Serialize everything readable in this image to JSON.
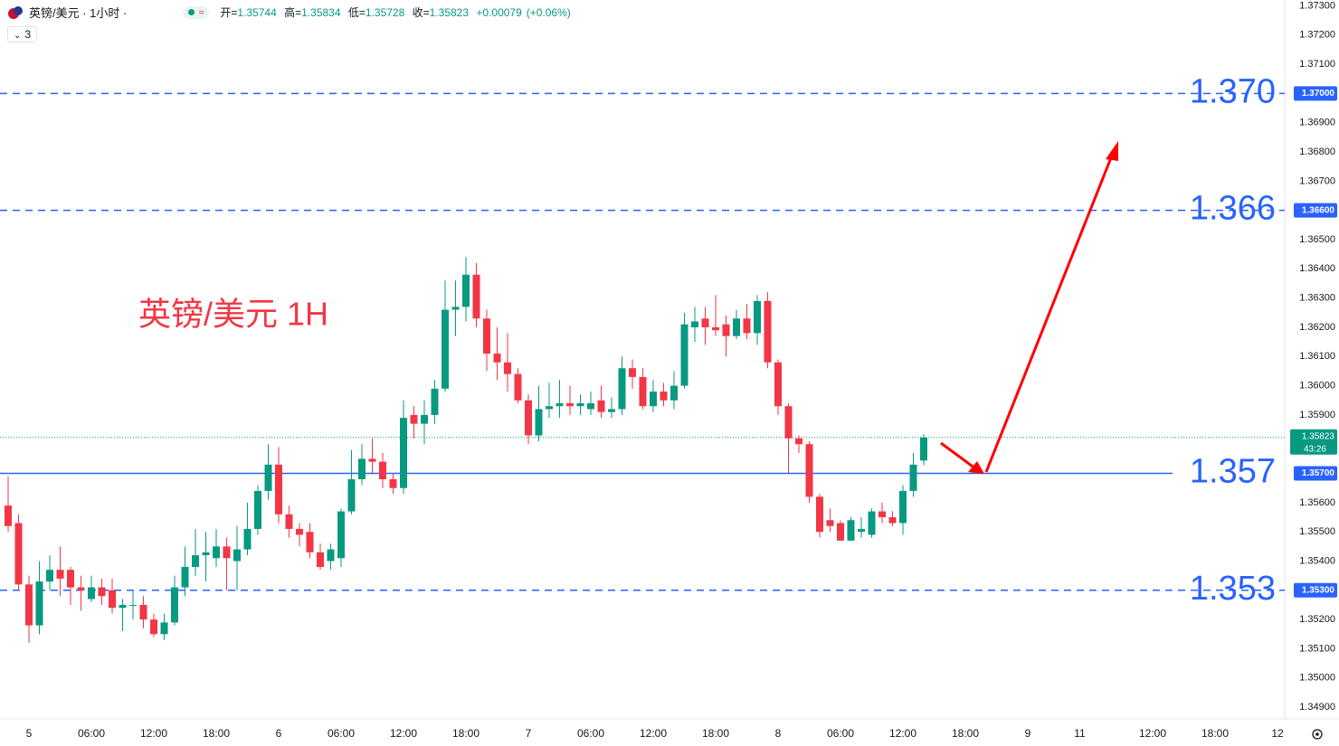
{
  "header": {
    "symbol": "英镑/美元 · 1小时 ·",
    "indicator_count": "3",
    "open_label": "开=",
    "high_label": "高=",
    "low_label": "低=",
    "close_label": "收=",
    "change": "+0.00079",
    "change_pct": "(+0.06%)"
  },
  "chart_data": {
    "type": "candlestick",
    "annotation": "英镑/美元 1H",
    "up_color": "#089981",
    "down_color": "#f23645",
    "level_color": "#2962ff",
    "countdown": "43:26",
    "grid": false,
    "ylim": [
      1.3486,
      1.3732
    ],
    "yticks": [
      {
        "value": 1.349,
        "label": "1.34900"
      },
      {
        "value": 1.35,
        "label": "1.35000"
      },
      {
        "value": 1.351,
        "label": "1.35100"
      },
      {
        "value": 1.352,
        "label": "1.35200"
      },
      {
        "value": 1.353,
        "label": "1.35300"
      },
      {
        "value": 1.354,
        "label": "1.35400"
      },
      {
        "value": 1.355,
        "label": "1.35500"
      },
      {
        "value": 1.356,
        "label": "1.35600"
      },
      {
        "value": 1.357,
        "label": "1.35700"
      },
      {
        "value": 1.358,
        "label": "1.35800"
      },
      {
        "value": 1.359,
        "label": "1.35900"
      },
      {
        "value": 1.36,
        "label": "1.36000"
      },
      {
        "value": 1.361,
        "label": "1.36100"
      },
      {
        "value": 1.362,
        "label": "1.36200"
      },
      {
        "value": 1.363,
        "label": "1.36300"
      },
      {
        "value": 1.364,
        "label": "1.36400"
      },
      {
        "value": 1.365,
        "label": "1.36500"
      },
      {
        "value": 1.366,
        "label": "1.36600"
      },
      {
        "value": 1.367,
        "label": "1.36700"
      },
      {
        "value": 1.368,
        "label": "1.36800"
      },
      {
        "value": 1.369,
        "label": "1.36900"
      },
      {
        "value": 1.37,
        "label": "1.37000"
      },
      {
        "value": 1.371,
        "label": "1.37100"
      },
      {
        "value": 1.372,
        "label": "1.37200"
      },
      {
        "value": 1.373,
        "label": "1.37300"
      }
    ],
    "levels": [
      {
        "value": 1.37,
        "label": "1.370",
        "axis_label": "1.37000",
        "style": "dashed"
      },
      {
        "value": 1.366,
        "label": "1.366",
        "axis_label": "1.36600",
        "style": "dashed"
      },
      {
        "value": 1.357,
        "label": "1.357",
        "axis_label": "1.35700",
        "style": "solid"
      },
      {
        "value": 1.353,
        "label": "1.353",
        "axis_label": "1.35300",
        "style": "dashed"
      }
    ],
    "categories": [
      null,
      null,
      "5",
      null,
      null,
      null,
      null,
      null,
      "06:00",
      null,
      null,
      null,
      null,
      null,
      "12:00",
      null,
      null,
      null,
      null,
      null,
      "18:00",
      null,
      null,
      null,
      null,
      null,
      "6",
      null,
      null,
      null,
      null,
      null,
      "06:00",
      null,
      null,
      null,
      null,
      null,
      "12:00",
      null,
      null,
      null,
      null,
      null,
      "18:00",
      null,
      null,
      null,
      null,
      null,
      "7",
      null,
      null,
      null,
      null,
      null,
      "06:00",
      null,
      null,
      null,
      null,
      null,
      "12:00",
      null,
      null,
      null,
      null,
      null,
      "18:00",
      null,
      null,
      null,
      null,
      null,
      "8",
      null,
      null,
      null,
      null,
      null,
      "06:00",
      null,
      null,
      null,
      null,
      null,
      "12:00",
      null,
      null,
      null,
      null,
      null,
      "18:00",
      null,
      null,
      null,
      null,
      null,
      "9",
      null,
      null,
      null,
      null,
      "11",
      null,
      null,
      null,
      null,
      null,
      null,
      "12:00",
      null,
      null,
      null,
      null,
      null,
      "18:00",
      null,
      null,
      null,
      null,
      null,
      "12"
    ],
    "open": [
      1.3559,
      1.3553,
      1.3532,
      1.3518,
      1.3533,
      1.3537,
      1.3537,
      1.3531,
      1.3527,
      1.3531,
      1.353,
      1.3524,
      1.3525,
      1.3525,
      1.352,
      1.3515,
      1.3519,
      1.3531,
      1.3538,
      1.3542,
      1.3541,
      1.3545,
      1.354,
      1.3544,
      1.3551,
      1.3564,
      1.3573,
      1.3556,
      1.3551,
      1.355,
      1.3543,
      1.354,
      1.3541,
      1.3557,
      1.3568,
      1.3575,
      1.3574,
      1.3568,
      1.3565,
      1.359,
      1.3587,
      1.359,
      1.3599,
      1.3626,
      1.3627,
      1.3638,
      1.3623,
      1.3611,
      1.3608,
      1.3604,
      1.3595,
      1.3583,
      1.3592,
      1.3593,
      1.3594,
      1.3593,
      1.3592,
      1.3595,
      1.3591,
      1.3592,
      1.3606,
      1.3603,
      1.3593,
      1.3598,
      1.3595,
      1.36,
      1.362,
      1.3623,
      1.362,
      1.3621,
      1.3617,
      1.3623,
      1.3618,
      1.3629,
      1.3608,
      1.3593,
      1.3582,
      1.358,
      1.3562,
      1.3554,
      1.3553,
      1.3547,
      1.355,
      1.3549,
      1.3557,
      1.3555,
      1.3553,
      1.3564,
      1.35744,
      null,
      null,
      null,
      null,
      null,
      null,
      null,
      null,
      null,
      null,
      null,
      null,
      null,
      null,
      null,
      null,
      null,
      null,
      null,
      null,
      null,
      null,
      null,
      null,
      null,
      null,
      null,
      null,
      null,
      null,
      null,
      null,
      null,
      null
    ],
    "high": [
      1.3569,
      1.3556,
      1.3535,
      1.354,
      1.3542,
      1.3545,
      1.3538,
      1.3535,
      1.3535,
      1.3534,
      1.3534,
      1.3527,
      1.353,
      1.3528,
      1.3522,
      1.3522,
      1.3535,
      1.3545,
      1.3551,
      1.355,
      1.3551,
      1.3548,
      1.3552,
      1.356,
      1.3566,
      1.358,
      1.3579,
      1.3559,
      1.3553,
      1.3553,
      1.3546,
      1.3546,
      1.3558,
      1.3578,
      1.358,
      1.3582,
      1.3577,
      1.357,
      1.3595,
      1.3593,
      1.3595,
      1.3602,
      1.3636,
      1.3636,
      1.3644,
      1.3642,
      1.3626,
      1.362,
      1.3618,
      1.3606,
      1.3597,
      1.36,
      1.3601,
      1.3602,
      1.36,
      1.3597,
      1.3598,
      1.36,
      1.3596,
      1.361,
      1.3609,
      1.3606,
      1.3602,
      1.3601,
      1.3605,
      1.3625,
      1.3627,
      1.3627,
      1.3631,
      1.3624,
      1.3626,
      1.3628,
      1.3631,
      1.3632,
      1.3609,
      1.3594,
      1.3583,
      1.3581,
      1.3563,
      1.3558,
      1.3554,
      1.3555,
      1.3555,
      1.3558,
      1.356,
      1.3557,
      1.3566,
      1.3577,
      1.35834,
      null,
      null,
      null,
      null,
      null,
      null,
      null,
      null,
      null,
      null,
      null,
      null,
      null,
      null,
      null,
      null,
      null,
      null,
      null,
      null,
      null,
      null,
      null,
      null,
      null,
      null,
      null,
      null,
      null,
      null,
      null,
      null,
      null,
      null
    ],
    "low": [
      1.355,
      1.353,
      1.3512,
      1.3515,
      1.353,
      1.3528,
      1.3525,
      1.3523,
      1.3526,
      1.3525,
      1.3522,
      1.3516,
      1.352,
      1.3517,
      1.3514,
      1.3513,
      1.3518,
      1.3528,
      1.3535,
      1.3533,
      1.3538,
      1.353,
      1.353,
      1.3542,
      1.3549,
      1.3561,
      1.3553,
      1.3548,
      1.3545,
      1.3541,
      1.3537,
      1.3537,
      1.3538,
      1.3556,
      1.3566,
      1.357,
      1.3565,
      1.3563,
      1.3563,
      1.3582,
      1.358,
      1.3587,
      1.3598,
      1.3617,
      1.3622,
      1.362,
      1.3605,
      1.3602,
      1.3598,
      1.3594,
      1.358,
      1.3581,
      1.3589,
      1.3589,
      1.359,
      1.359,
      1.359,
      1.3589,
      1.3589,
      1.359,
      1.3599,
      1.3592,
      1.3591,
      1.3593,
      1.3592,
      1.3599,
      1.3615,
      1.3614,
      1.3617,
      1.361,
      1.3616,
      1.3616,
      1.3614,
      1.3606,
      1.359,
      1.357,
      1.3577,
      1.356,
      1.3548,
      1.355,
      1.3547,
      1.3547,
      1.3548,
      1.3548,
      1.3553,
      1.3552,
      1.3549,
      1.3562,
      1.35728,
      null,
      null,
      null,
      null,
      null,
      null,
      null,
      null,
      null,
      null,
      null,
      null,
      null,
      null,
      null,
      null,
      null,
      null,
      null,
      null,
      null,
      null,
      null,
      null,
      null,
      null,
      null,
      null,
      null,
      null,
      null,
      null,
      null,
      null
    ],
    "close": [
      1.3552,
      1.3532,
      1.3518,
      1.3533,
      1.3537,
      1.3534,
      1.3531,
      1.353,
      1.3531,
      1.3528,
      1.3524,
      1.3525,
      1.3525,
      1.352,
      1.3515,
      1.3519,
      1.3531,
      1.3538,
      1.3542,
      1.3543,
      1.3545,
      1.3541,
      1.3544,
      1.3551,
      1.3564,
      1.3573,
      1.3556,
      1.3551,
      1.3549,
      1.3543,
      1.3538,
      1.3544,
      1.3557,
      1.3568,
      1.3575,
      1.3574,
      1.3568,
      1.3565,
      1.3589,
      1.3587,
      1.359,
      1.3599,
      1.3626,
      1.3627,
      1.3638,
      1.3623,
      1.3611,
      1.3608,
      1.3604,
      1.3595,
      1.3583,
      1.3592,
      1.3593,
      1.3594,
      1.3593,
      1.3594,
      1.3594,
      1.3591,
      1.3592,
      1.3606,
      1.3603,
      1.3593,
      1.3598,
      1.3595,
      1.36,
      1.3621,
      1.3622,
      1.362,
      1.3619,
      1.3617,
      1.3623,
      1.3618,
      1.3629,
      1.3608,
      1.3593,
      1.3582,
      1.358,
      1.3562,
      1.355,
      1.3552,
      1.3547,
      1.3554,
      1.3551,
      1.3557,
      1.3555,
      1.3553,
      1.3564,
      1.3573,
      1.35823,
      null,
      null,
      null,
      null,
      null,
      null,
      null,
      null,
      null,
      null,
      null,
      null,
      null,
      null,
      null,
      null,
      null,
      null,
      null,
      null,
      null,
      null,
      null,
      null,
      null,
      null,
      null,
      null,
      null,
      null,
      null,
      null,
      null,
      null
    ]
  }
}
